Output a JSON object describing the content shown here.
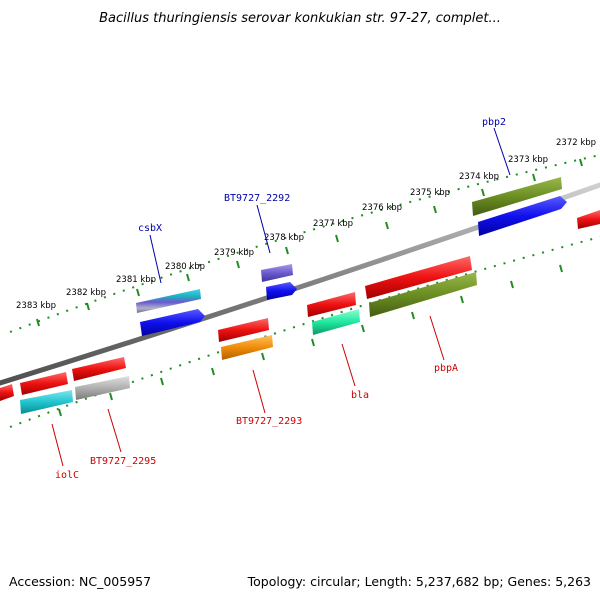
{
  "header": {
    "title": "Bacillus thuringiensis serovar konkukian str. 97-27, complet..."
  },
  "footer": {
    "accession": "Accession: NC_005957",
    "summary": "Topology: circular; Length: 5,237,682 bp; Genes: 5,263"
  },
  "scale": {
    "unit": "kbp",
    "ticks": [
      {
        "value": 2383,
        "label": "2383 kbp"
      },
      {
        "value": 2382,
        "label": "2382 kbp"
      },
      {
        "value": 2381,
        "label": "2381 kbp"
      },
      {
        "value": 2380,
        "label": "2380 kbp"
      },
      {
        "value": 2379,
        "label": "2379 kbp"
      },
      {
        "value": 2378,
        "label": "2378 kbp"
      },
      {
        "value": 2377,
        "label": "2377 kbp"
      },
      {
        "value": 2376,
        "label": "2376 kbp"
      },
      {
        "value": 2375,
        "label": "2375 kbp"
      },
      {
        "value": 2374,
        "label": "2374 kbp"
      },
      {
        "value": 2373,
        "label": "2373 kbp"
      },
      {
        "value": 2372,
        "label": "2372 kbp"
      }
    ]
  },
  "colors": {
    "backbone": "#808080",
    "tick_dots": "#228b22",
    "fwd_label": "#0000aa",
    "rev_label": "#cc0000"
  },
  "gene_labels": {
    "forward": [
      {
        "name": "csbX"
      },
      {
        "name": "BT9727_2292"
      },
      {
        "name": "pbp2"
      }
    ],
    "reverse": [
      {
        "name": "iolC"
      },
      {
        "name": "BT9727_2295"
      },
      {
        "name": "BT9727_2293"
      },
      {
        "name": "bla"
      },
      {
        "name": "pbpA"
      }
    ]
  },
  "features": [
    {
      "track": "fwd-inner",
      "color": "#2bb5c9",
      "kind": "gene"
    },
    {
      "track": "fwd-inner",
      "color": "#6a5acd",
      "kind": "gene"
    },
    {
      "track": "fwd-inner",
      "color": "#6b8e23",
      "kind": "gene"
    },
    {
      "track": "fwd-outer",
      "color": "#1010ee",
      "kind": "cds"
    },
    {
      "track": "fwd-outer",
      "color": "#1010ee",
      "kind": "cds"
    },
    {
      "track": "fwd-outer",
      "color": "#1010ee",
      "kind": "cds"
    },
    {
      "track": "rev-inner",
      "color": "#ee1111",
      "kind": "gene"
    },
    {
      "track": "rev-outer",
      "color": "#20c5cf",
      "kind": "cds"
    },
    {
      "track": "rev-outer",
      "color": "#b0b0b0",
      "kind": "cds"
    },
    {
      "track": "rev-outer",
      "color": "#f08c0a",
      "kind": "cds"
    },
    {
      "track": "rev-outer",
      "color": "#20e8a0",
      "kind": "cds"
    },
    {
      "track": "rev-outer",
      "color": "#6b8e23",
      "kind": "cds"
    }
  ]
}
